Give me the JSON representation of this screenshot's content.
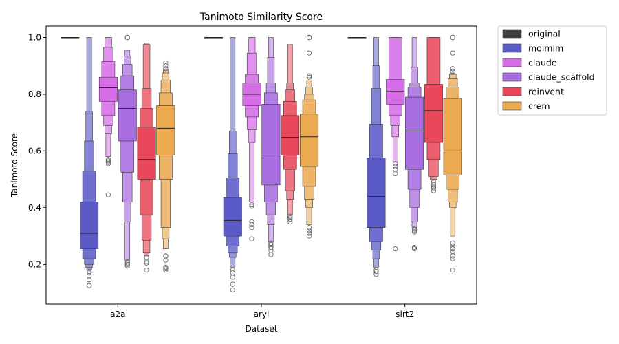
{
  "chart_data": {
    "type": "boxen",
    "title": "Tanimoto Similarity Score",
    "xlabel": "Dataset",
    "ylabel": "Tanimoto Score",
    "ylim": [
      0.06,
      1.04
    ],
    "yticks": [
      0.2,
      0.4,
      0.6,
      0.8,
      1.0
    ],
    "ytick_labels": [
      "0.2",
      "0.4",
      "0.6",
      "0.8",
      "1.0"
    ],
    "categories": [
      "a2a",
      "aryl",
      "sirt2"
    ],
    "legend_position": "outside-top-right",
    "series": [
      {
        "name": "original",
        "color": "#404040",
        "groups": [
          {
            "median": 1.0,
            "levels": [
              [
                1.0,
                1.0
              ]
            ],
            "outliers": []
          },
          {
            "median": 1.0,
            "levels": [
              [
                1.0,
                1.0
              ]
            ],
            "outliers": []
          },
          {
            "median": 1.0,
            "levels": [
              [
                1.0,
                1.0
              ]
            ],
            "outliers": []
          }
        ]
      },
      {
        "name": "molmim",
        "color": "#5b5bc8",
        "groups": [
          {
            "median": 0.31,
            "levels": [
              [
                0.255,
                0.42
              ],
              [
                0.22,
                0.53
              ],
              [
                0.2,
                0.635
              ],
              [
                0.19,
                0.74
              ],
              [
                0.18,
                1.0
              ]
            ],
            "outliers": [
              0.175,
              0.17,
              0.16,
              0.145,
              0.125
            ]
          },
          {
            "median": 0.355,
            "levels": [
              [
                0.3,
                0.435
              ],
              [
                0.265,
                0.505
              ],
              [
                0.24,
                0.59
              ],
              [
                0.225,
                0.67
              ],
              [
                0.19,
                1.0
              ]
            ],
            "outliers": [
              0.18,
              0.17,
              0.155,
              0.13,
              0.11
            ]
          },
          {
            "median": 0.44,
            "levels": [
              [
                0.33,
                0.575
              ],
              [
                0.28,
                0.695
              ],
              [
                0.25,
                0.82
              ],
              [
                0.22,
                0.9
              ],
              [
                0.19,
                1.0
              ]
            ],
            "outliers": [
              0.18,
              0.175,
              0.165
            ]
          }
        ]
      },
      {
        "name": "claude",
        "color": "#d66ee8",
        "groups": [
          {
            "median": 0.823,
            "levels": [
              [
                0.775,
                0.86
              ],
              [
                0.725,
                0.915
              ],
              [
                0.69,
                0.965
              ],
              [
                0.66,
                1.0
              ],
              [
                0.58,
                1.0
              ]
            ],
            "outliers": [
              0.57,
              0.565,
              0.56,
              0.555,
              0.445
            ]
          },
          {
            "median": 0.8,
            "levels": [
              [
                0.76,
                0.84
              ],
              [
                0.72,
                0.87
              ],
              [
                0.675,
                0.945
              ],
              [
                0.63,
                1.0
              ],
              [
                0.42,
                1.0
              ]
            ],
            "outliers": [
              0.41,
              0.405,
              0.35,
              0.34,
              0.33,
              0.29
            ]
          },
          {
            "median": 0.81,
            "levels": [
              [
                0.765,
                0.852
              ],
              [
                0.725,
                1.0
              ],
              [
                0.69,
                1.0
              ],
              [
                0.65,
                1.0
              ],
              [
                0.56,
                1.0
              ]
            ],
            "outliers": [
              0.555,
              0.545,
              0.535,
              0.52,
              0.255
            ]
          }
        ]
      },
      {
        "name": "claude_scaffold",
        "color": "#a86ee0",
        "groups": [
          {
            "median": 0.75,
            "levels": [
              [
                0.635,
                0.815
              ],
              [
                0.525,
                0.865
              ],
              [
                0.42,
                0.905
              ],
              [
                0.35,
                0.935
              ],
              [
                0.215,
                0.955
              ]
            ],
            "outliers": [
              1.0,
              1.0,
              0.21,
              0.205,
              0.2,
              0.195
            ]
          },
          {
            "median": 0.585,
            "levels": [
              [
                0.48,
                0.765
              ],
              [
                0.42,
                0.805
              ],
              [
                0.375,
                0.84
              ],
              [
                0.34,
                0.93
              ],
              [
                0.28,
                1.0
              ]
            ],
            "outliers": [
              0.275,
              0.27,
              0.265,
              0.26,
              0.25,
              0.235
            ]
          },
          {
            "median": 0.67,
            "levels": [
              [
                0.535,
                0.79
              ],
              [
                0.465,
                0.825
              ],
              [
                0.4,
                0.84
              ],
              [
                0.35,
                0.895
              ],
              [
                0.33,
                1.0
              ]
            ],
            "outliers": [
              0.325,
              0.32,
              0.315,
              0.26,
              0.255
            ]
          }
        ]
      },
      {
        "name": "reinvent",
        "color": "#e8485a",
        "groups": [
          {
            "median": 0.57,
            "levels": [
              [
                0.5,
                0.685
              ],
              [
                0.375,
                0.75
              ],
              [
                0.285,
                0.82
              ],
              [
                0.24,
                0.975
              ],
              [
                0.23,
                0.98
              ]
            ],
            "outliers": [
              0.225,
              0.21,
              0.205,
              0.18
            ]
          },
          {
            "median": 0.648,
            "levels": [
              [
                0.585,
                0.725
              ],
              [
                0.535,
                0.775
              ],
              [
                0.46,
                0.815
              ],
              [
                0.43,
                0.84
              ],
              [
                0.375,
                0.975
              ]
            ],
            "outliers": [
              0.37,
              0.365,
              0.36,
              0.35
            ]
          },
          {
            "median": 0.742,
            "levels": [
              [
                0.63,
                0.835
              ],
              [
                0.57,
                1.0
              ],
              [
                0.51,
                1.0
              ],
              [
                0.5,
                1.0
              ]
            ],
            "outliers": [
              0.49,
              0.48,
              0.475,
              0.47,
              0.46
            ]
          }
        ]
      },
      {
        "name": "crem",
        "color": "#eba950",
        "groups": [
          {
            "median": 0.68,
            "levels": [
              [
                0.585,
                0.76
              ],
              [
                0.5,
                0.805
              ],
              [
                0.33,
                0.85
              ],
              [
                0.29,
                0.875
              ],
              [
                0.255,
                0.885
              ]
            ],
            "outliers": [
              0.91,
              0.9,
              0.89,
              0.23,
              0.215,
              0.19,
              0.185,
              0.18
            ]
          },
          {
            "median": 0.65,
            "levels": [
              [
                0.545,
                0.73
              ],
              [
                0.475,
                0.78
              ],
              [
                0.43,
                0.8
              ],
              [
                0.4,
                0.825
              ],
              [
                0.34,
                0.85
              ]
            ],
            "outliers": [
              1.0,
              1.0,
              0.945,
              0.865,
              0.86,
              0.33,
              0.32,
              0.31,
              0.3
            ]
          },
          {
            "median": 0.6,
            "levels": [
              [
                0.515,
                0.785
              ],
              [
                0.465,
                0.825
              ],
              [
                0.42,
                0.855
              ],
              [
                0.4,
                0.87
              ],
              [
                0.3,
                0.875
              ]
            ],
            "outliers": [
              1.0,
              1.0,
              0.945,
              0.89,
              0.88,
              0.275,
              0.265,
              0.255,
              0.245,
              0.23,
              0.22,
              0.18
            ]
          }
        ]
      }
    ]
  }
}
